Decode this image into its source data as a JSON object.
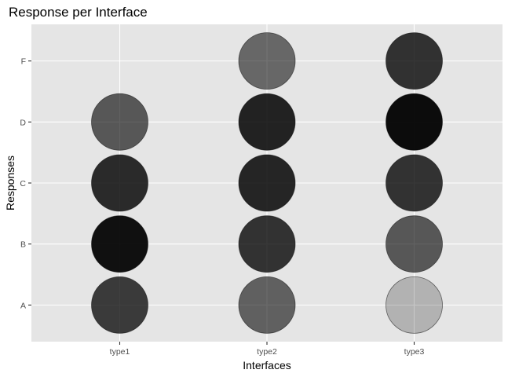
{
  "chart_data": {
    "type": "scatter",
    "title": "Response per Interface",
    "xlabel": "Interfaces",
    "ylabel": "Responses",
    "categories_x": [
      "type1",
      "type2",
      "type3"
    ],
    "categories_y": [
      "A",
      "B",
      "C",
      "D",
      "F"
    ],
    "grid": true,
    "legend": "none",
    "encoding": "fill darkness (opacity of black)",
    "points": [
      {
        "x": "type1",
        "y": "A",
        "opacity": 0.75
      },
      {
        "x": "type1",
        "y": "B",
        "opacity": 0.93
      },
      {
        "x": "type1",
        "y": "C",
        "opacity": 0.82
      },
      {
        "x": "type1",
        "y": "D",
        "opacity": 0.62
      },
      {
        "x": "type2",
        "y": "A",
        "opacity": 0.58
      },
      {
        "x": "type2",
        "y": "B",
        "opacity": 0.78
      },
      {
        "x": "type2",
        "y": "C",
        "opacity": 0.84
      },
      {
        "x": "type2",
        "y": "D",
        "opacity": 0.85
      },
      {
        "x": "type2",
        "y": "F",
        "opacity": 0.55
      },
      {
        "x": "type3",
        "y": "A",
        "opacity": 0.22
      },
      {
        "x": "type3",
        "y": "B",
        "opacity": 0.62
      },
      {
        "x": "type3",
        "y": "C",
        "opacity": 0.78
      },
      {
        "x": "type3",
        "y": "D",
        "opacity": 0.95
      },
      {
        "x": "type3",
        "y": "F",
        "opacity": 0.79
      }
    ],
    "colors": {
      "panel": "#e5e5e5",
      "grid": "#ffffff",
      "point": "#000000"
    }
  }
}
